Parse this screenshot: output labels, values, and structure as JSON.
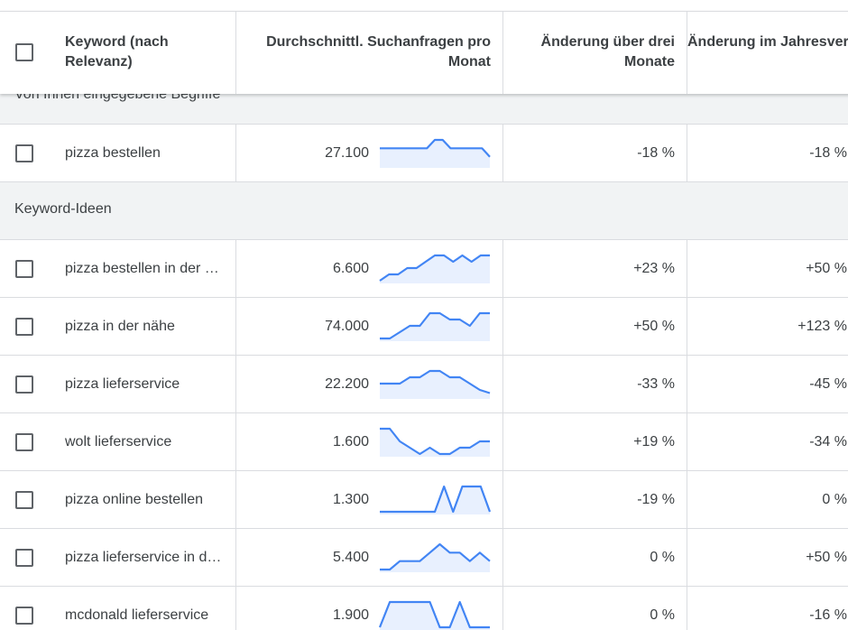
{
  "header": {
    "keyword": "Keyword (nach Relevanz)",
    "avg_searches": "Durchschnittl. Suchanfragen pro Monat",
    "three_month_change": "Änderung über drei Monate",
    "yoy_change": "Änderung im Jahresvergleich"
  },
  "groups": {
    "entered": "Von Ihnen eingegebene Begriffe",
    "ideas": "Keyword-Ideen"
  },
  "accent_color": "#4285f4",
  "rows": [
    {
      "keyword": "pizza bestellen",
      "avg": "27.100",
      "change_3m": "-18 %",
      "change_yoy": "-18 %",
      "trend": [
        2,
        2,
        2,
        2,
        2,
        2,
        2,
        3,
        3,
        2,
        2,
        2,
        2,
        2,
        1
      ]
    },
    {
      "keyword": "pizza bestellen in der nähe",
      "avg": "6.600",
      "change_3m": "+23 %",
      "change_yoy": "+50 %",
      "trend": [
        0,
        1,
        1,
        2,
        2,
        3,
        4,
        4,
        3,
        4,
        3,
        4,
        4
      ]
    },
    {
      "keyword": "pizza in der nähe",
      "avg": "74.000",
      "change_3m": "+50 %",
      "change_yoy": "+123 %",
      "trend": [
        0,
        0,
        1,
        2,
        2,
        4,
        4,
        3,
        3,
        2,
        4,
        4
      ]
    },
    {
      "keyword": "pizza lieferservice",
      "avg": "22.200",
      "change_3m": "-33 %",
      "change_yoy": "-45 %",
      "trend": [
        2,
        2,
        2,
        3,
        3,
        4,
        4,
        3,
        3,
        2,
        1,
        0.5
      ]
    },
    {
      "keyword": "wolt lieferservice",
      "avg": "1.600",
      "change_3m": "+19 %",
      "change_yoy": "-34 %",
      "trend": [
        4,
        4,
        2,
        1,
        0,
        1,
        0,
        0,
        1,
        1,
        2,
        2
      ]
    },
    {
      "keyword": "pizza online bestellen",
      "avg": "1.300",
      "change_3m": "-19 %",
      "change_yoy": "0 %",
      "trend": [
        0,
        0,
        0,
        0,
        0,
        0,
        0,
        3,
        0,
        3,
        3,
        3,
        0
      ]
    },
    {
      "keyword": "pizza lieferservice in der nähe",
      "avg": "5.400",
      "change_3m": "0 %",
      "change_yoy": "+50 %",
      "trend": [
        0,
        0,
        1,
        1,
        1,
        2,
        3,
        2,
        2,
        1,
        2,
        1
      ]
    },
    {
      "keyword": "mcdonald lieferservice",
      "avg": "1.900",
      "change_3m": "0 %",
      "change_yoy": "-16 %",
      "trend": [
        0,
        3,
        3,
        3,
        3,
        3,
        0,
        0,
        3,
        0,
        0,
        0
      ]
    }
  ]
}
